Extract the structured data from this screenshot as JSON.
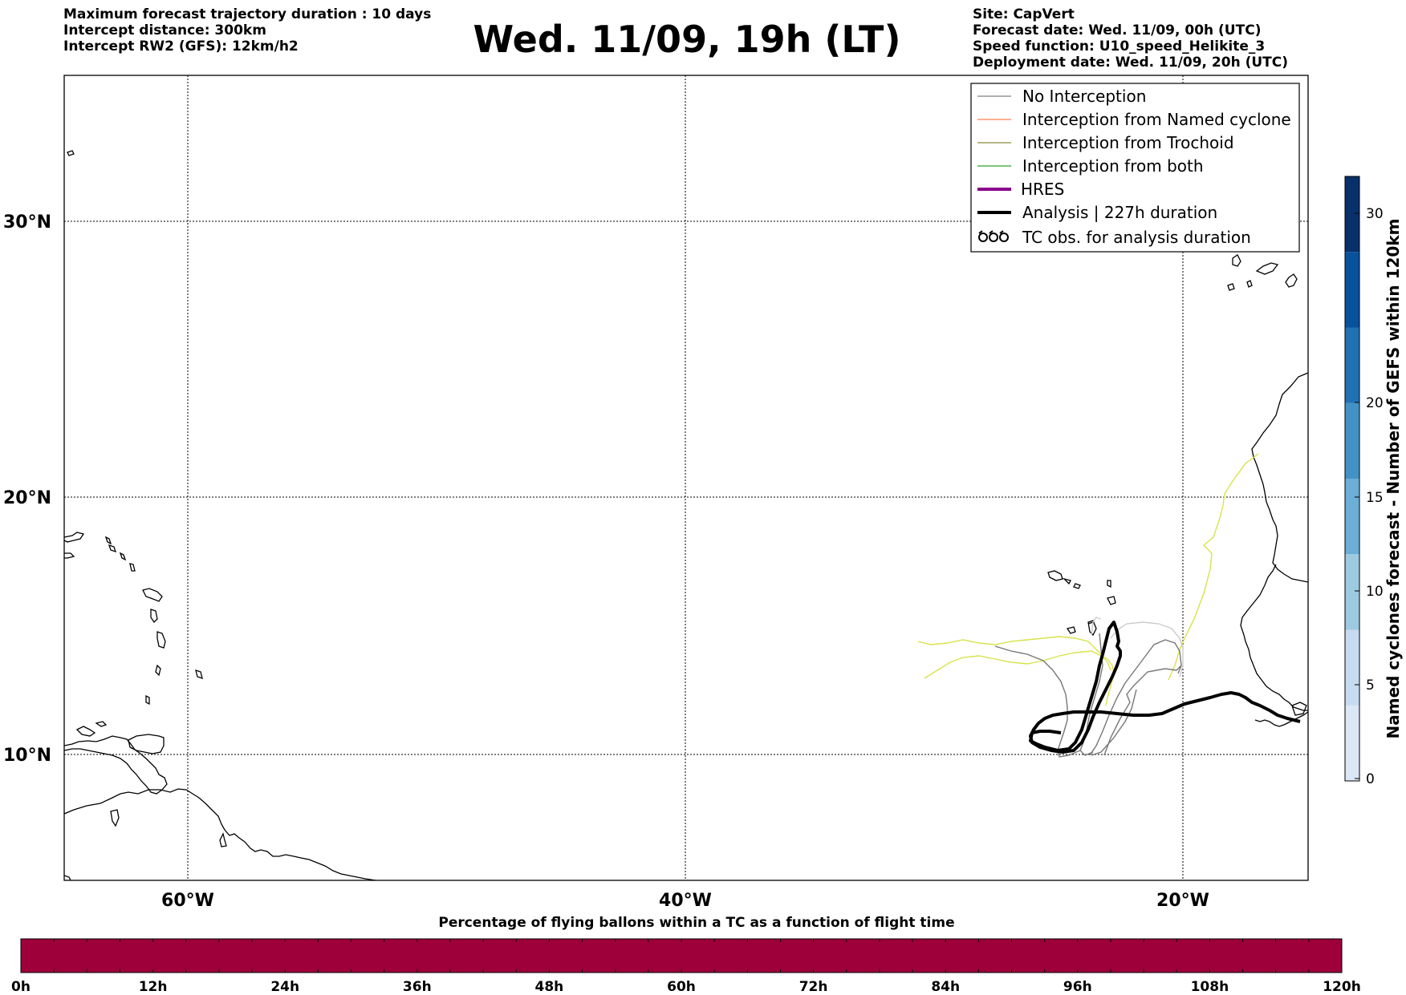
{
  "header": {
    "left": [
      "Maximum forecast trajectory duration : 10 days",
      "Intercept distance: 300km",
      "Intercept RW2 (GFS):  12km/h2"
    ],
    "title": "Wed. 11/09, 19h (LT)",
    "right": [
      "Site: CapVert",
      "Forecast date: Wed. 11/09, 00h (UTC)",
      "Speed function: U10_speed_Helikite_3",
      "Deployment date: Wed. 11/09, 20h (UTC)"
    ]
  },
  "map": {
    "lat_labels": [
      "30°N",
      "20°N",
      "10°N"
    ],
    "lon_labels": [
      "60°W",
      "40°W",
      "20°W"
    ],
    "legend": [
      {
        "label": "No Interception",
        "color": "#808080",
        "style": "thin-line"
      },
      {
        "label": "Interception from Named cyclone",
        "color": "#ff7f50",
        "style": "thin-line"
      },
      {
        "label": "Interception from Trochoid",
        "color": "#8b8b3a",
        "style": "thin-line"
      },
      {
        "label": "Interception from both",
        "color": "#2ca02c",
        "style": "thin-line"
      },
      {
        "label": "HRES",
        "color": "#8b008b",
        "style": "thick-line"
      },
      {
        "label": "Analysis | 227h duration",
        "color": "#000000",
        "style": "thick-line"
      },
      {
        "label": "TC obs. for analysis duration",
        "color": "#000000",
        "style": "tc-symbols"
      }
    ],
    "track_colors": {
      "analysis": "#000000",
      "gefs_light": "#d8e34a",
      "gefs_grey": "#777777"
    }
  },
  "colorbar_right": {
    "label": "Named cyclones forecast - Number of GEFS within 120km",
    "ticks": [
      "0",
      "5",
      "10",
      "15",
      "20",
      "30"
    ],
    "colors": [
      "#dbe7f5",
      "#c6dbef",
      "#9ecae1",
      "#6baed6",
      "#4292c6",
      "#2171b5",
      "#08519c",
      "#08306b"
    ]
  },
  "colorbar_bottom": {
    "title": "Percentage of flying ballons within a TC as a function of flight time",
    "ticks": [
      "0h",
      "12h",
      "24h",
      "36h",
      "48h",
      "60h",
      "72h",
      "84h",
      "96h",
      "108h",
      "120h"
    ],
    "fill_color": "#9e003a"
  }
}
